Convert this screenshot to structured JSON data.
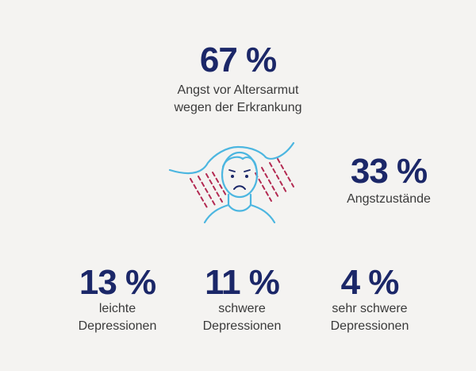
{
  "stats": [
    {
      "value": "67 %",
      "label": [
        "Angst vor Altersarmut",
        "wegen der Erkrankung"
      ]
    },
    {
      "value": "33 %",
      "label": [
        "Angstzustände"
      ]
    },
    {
      "value": "13 %",
      "label": [
        "leichte",
        "Depressionen"
      ]
    },
    {
      "value": "11 %",
      "label": [
        "schwere",
        "Depressionen"
      ]
    },
    {
      "value": "4 %",
      "label": [
        "sehr schwere",
        "Depressionen"
      ]
    }
  ]
}
